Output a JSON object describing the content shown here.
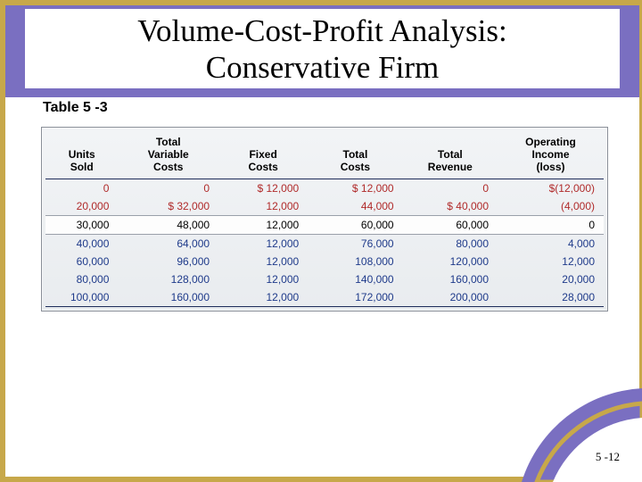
{
  "theme": {
    "purple": "#7a6fc1",
    "gold": "#c7a84a",
    "tableBorder": "#8a8f98",
    "headerRule": "#1f2d5a",
    "bodyText": "#1e3a8a",
    "lossText": "#b02a2a",
    "tableBgTop": "#f2f4f6",
    "tableBgBottom": "#e9ecef",
    "highlightBg": "#fdfdfd"
  },
  "typography": {
    "title_family": "Times New Roman",
    "title_fontsize_pt": 26,
    "body_family": "Arial",
    "header_fontsize_pt": 9,
    "cell_fontsize_pt": 9
  },
  "title": {
    "line1": "Volume-Cost-Profit Analysis:",
    "line2": "Conservative Firm"
  },
  "subtitle": "Table 5 -3",
  "page_number": "5 -12",
  "table": {
    "columns": [
      "Units\nSold",
      "Total\nVariable\nCosts",
      "Fixed\nCosts",
      "Total\nCosts",
      "Total\nRevenue",
      "Operating\nIncome\n(loss)"
    ],
    "col_align": [
      "right",
      "right",
      "right",
      "right",
      "right",
      "right"
    ],
    "col_widths_pct": [
      13,
      18,
      16,
      17,
      17,
      19
    ],
    "rows": [
      {
        "cells": [
          "0",
          "0",
          "$ 12,000",
          "$  12,000",
          "0",
          "$(12,000)"
        ],
        "style": "loss"
      },
      {
        "cells": [
          "20,000",
          "$  32,000",
          "12,000",
          "44,000",
          "$  40,000",
          "(4,000)"
        ],
        "style": "loss"
      },
      {
        "cells": [
          "30,000",
          "48,000",
          "12,000",
          "60,000",
          "60,000",
          "0"
        ],
        "style": "highlight"
      },
      {
        "cells": [
          "40,000",
          "64,000",
          "12,000",
          "76,000",
          "80,000",
          "4,000"
        ],
        "style": "normal"
      },
      {
        "cells": [
          "60,000",
          "96,000",
          "12,000",
          "108,000",
          "120,000",
          "12,000"
        ],
        "style": "normal"
      },
      {
        "cells": [
          "80,000",
          "128,000",
          "12,000",
          "140,000",
          "160,000",
          "20,000"
        ],
        "style": "normal"
      },
      {
        "cells": [
          "100,000",
          "160,000",
          "12,000",
          "172,000",
          "200,000",
          "28,000"
        ],
        "style": "normal"
      }
    ]
  }
}
